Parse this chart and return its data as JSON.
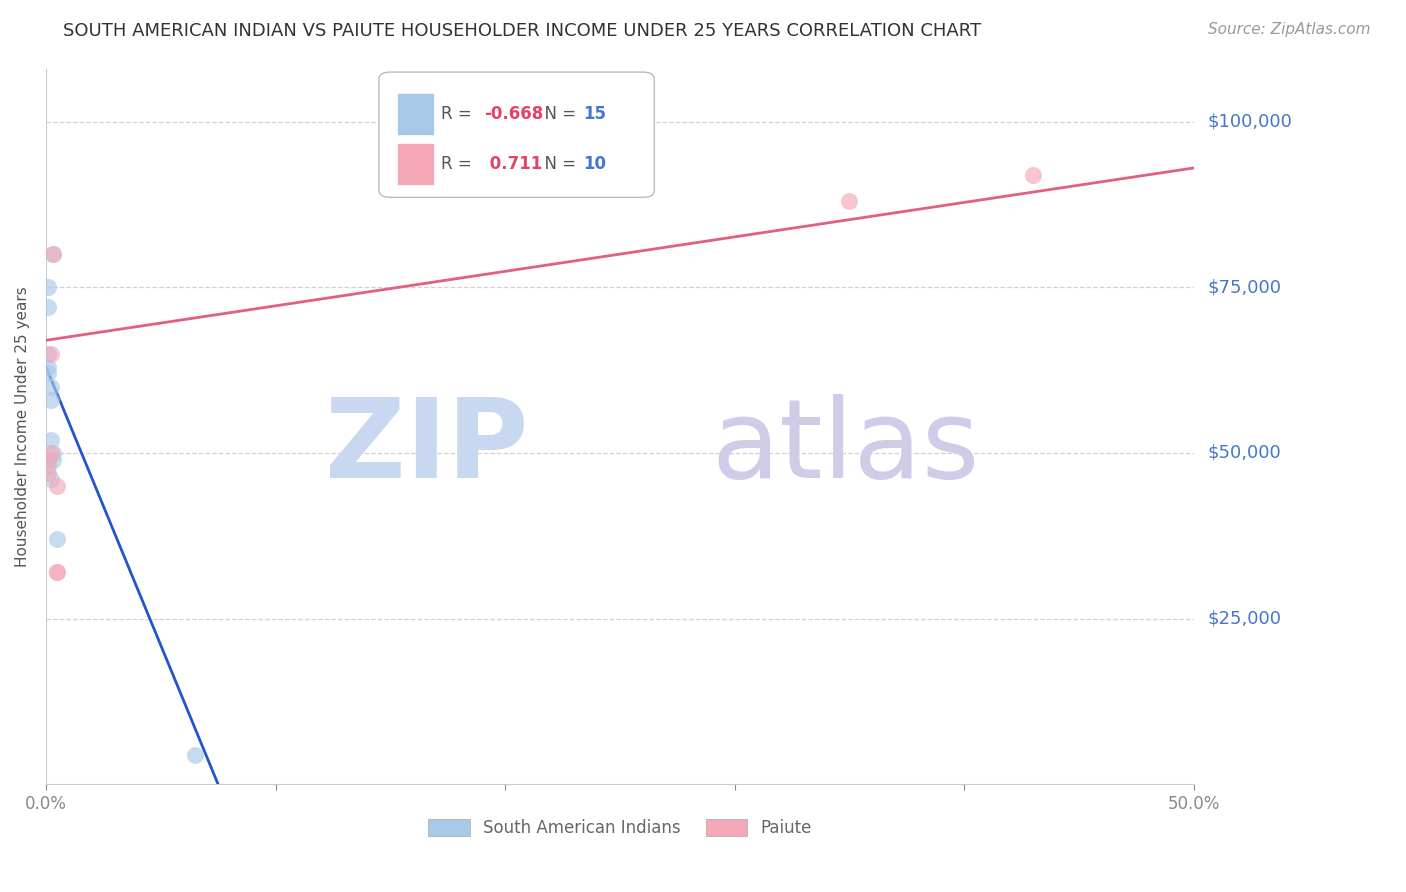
{
  "title": "SOUTH AMERICAN INDIAN VS PAIUTE HOUSEHOLDER INCOME UNDER 25 YEARS CORRELATION CHART",
  "source": "Source: ZipAtlas.com",
  "ylabel": "Householder Income Under 25 years",
  "blue_label": "South American Indians",
  "pink_label": "Paiute",
  "blue_R": -0.668,
  "blue_N": 15,
  "pink_R": 0.711,
  "pink_N": 10,
  "blue_color": "#a8c8e8",
  "pink_color": "#f4a8b8",
  "blue_line_color": "#2255cc",
  "pink_line_color": "#e06080",
  "axis_label_color": "#4477cc",
  "N_color": "#4477cc",
  "ytick_labels": [
    "$25,000",
    "$50,000",
    "$75,000",
    "$100,000"
  ],
  "ytick_values": [
    25000,
    50000,
    75000,
    100000
  ],
  "ylim": [
    0,
    108000
  ],
  "xlim": [
    0.0,
    0.5
  ],
  "blue_scatter_x": [
    0.001,
    0.003,
    0.001,
    0.001,
    0.001,
    0.001,
    0.002,
    0.002,
    0.002,
    0.003,
    0.003,
    0.001,
    0.002,
    0.005,
    0.065
  ],
  "blue_scatter_y": [
    75000,
    80000,
    72000,
    65000,
    63000,
    62000,
    60000,
    58000,
    52000,
    50000,
    49000,
    48000,
    46000,
    37000,
    4500
  ],
  "pink_scatter_x": [
    0.001,
    0.001,
    0.002,
    0.002,
    0.003,
    0.005,
    0.005,
    0.005,
    0.35,
    0.43
  ],
  "pink_scatter_y": [
    47000,
    49000,
    65000,
    50000,
    80000,
    45000,
    32000,
    32000,
    88000,
    92000
  ],
  "blue_line_x": [
    0.0,
    0.075
  ],
  "blue_line_y": [
    63000,
    0
  ],
  "pink_line_x": [
    0.0,
    0.5
  ],
  "pink_line_y": [
    67000,
    93000
  ],
  "background_color": "#ffffff",
  "grid_color": "#cccccc",
  "legend_R_color": "#cc3355",
  "legend_blue_R_color": "#cc3355",
  "watermark_zip_color": "#c8d8f0",
  "watermark_atlas_color": "#d0cce8"
}
